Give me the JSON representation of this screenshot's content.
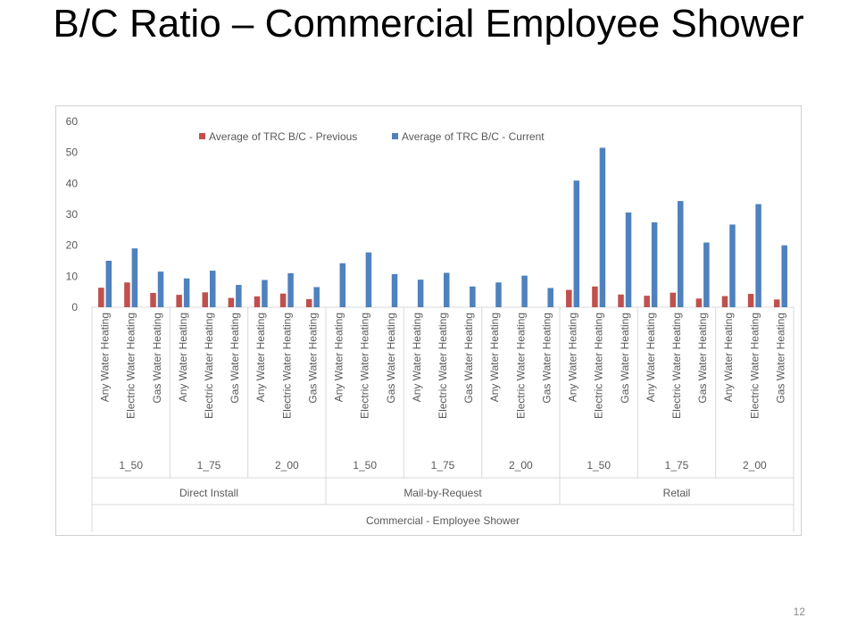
{
  "slide": {
    "title": "B/C Ratio – Commercial Employee Shower",
    "page_number": "12"
  },
  "colors": {
    "previous": "#c0504d",
    "current": "#4f81bd",
    "axis_text": "#595959",
    "divider": "#d9d9d9"
  },
  "chart_data": {
    "type": "bar",
    "title": "",
    "ylim": [
      0,
      60
    ],
    "yticks": [
      0,
      10,
      20,
      30,
      40,
      50,
      60
    ],
    "legend_position": "top",
    "grid": false,
    "category_levels": {
      "level1": [
        "Any Water Heating",
        "Electric Water Heating",
        "Gas Water Heating"
      ],
      "level2": [
        "1_50",
        "1_75",
        "2_00"
      ],
      "level3": [
        "Direct Install",
        "Mail-by-Request",
        "Retail"
      ],
      "level4": [
        "Commercial - Employee Shower"
      ]
    },
    "categories": [
      "Direct Install | 1_50 | Any Water Heating",
      "Direct Install | 1_50 | Electric Water Heating",
      "Direct Install | 1_50 | Gas Water Heating",
      "Direct Install | 1_75 | Any Water Heating",
      "Direct Install | 1_75 | Electric Water Heating",
      "Direct Install | 1_75 | Gas Water Heating",
      "Direct Install | 2_00 | Any Water Heating",
      "Direct Install | 2_00 | Electric Water Heating",
      "Direct Install | 2_00 | Gas Water Heating",
      "Mail-by-Request | 1_50 | Any Water Heating",
      "Mail-by-Request | 1_50 | Electric Water Heating",
      "Mail-by-Request | 1_50 | Gas Water Heating",
      "Mail-by-Request | 1_75 | Any Water Heating",
      "Mail-by-Request | 1_75 | Electric Water Heating",
      "Mail-by-Request | 1_75 | Gas Water Heating",
      "Mail-by-Request | 2_00 | Any Water Heating",
      "Mail-by-Request | 2_00 | Electric Water Heating",
      "Mail-by-Request | 2_00 | Gas Water Heating",
      "Retail | 1_50 | Any Water Heating",
      "Retail | 1_50 | Electric Water Heating",
      "Retail | 1_50 | Gas Water Heating",
      "Retail | 1_75 | Any Water Heating",
      "Retail | 1_75 | Electric Water Heating",
      "Retail | 1_75 | Gas Water Heating",
      "Retail | 2_00 | Any Water Heating",
      "Retail | 2_00 | Electric Water Heating",
      "Retail | 2_00 | Gas Water Heating"
    ],
    "series": [
      {
        "name": "Average of TRC B/C - Previous",
        "values": [
          6.3,
          8.0,
          4.6,
          4.0,
          4.8,
          3.0,
          3.5,
          4.4,
          2.6,
          null,
          null,
          null,
          null,
          null,
          null,
          null,
          null,
          null,
          5.6,
          6.7,
          4.1,
          3.7,
          4.7,
          2.8,
          3.6,
          4.3,
          2.5
        ]
      },
      {
        "name": "Average of TRC B/C - Current",
        "values": [
          15.0,
          19.0,
          11.5,
          9.3,
          11.8,
          7.2,
          8.8,
          11.0,
          6.5,
          14.2,
          17.7,
          10.7,
          8.9,
          11.1,
          6.7,
          8.0,
          10.2,
          6.2,
          40.9,
          51.5,
          30.6,
          27.4,
          34.3,
          20.9,
          26.7,
          33.3,
          20.0
        ]
      }
    ]
  }
}
